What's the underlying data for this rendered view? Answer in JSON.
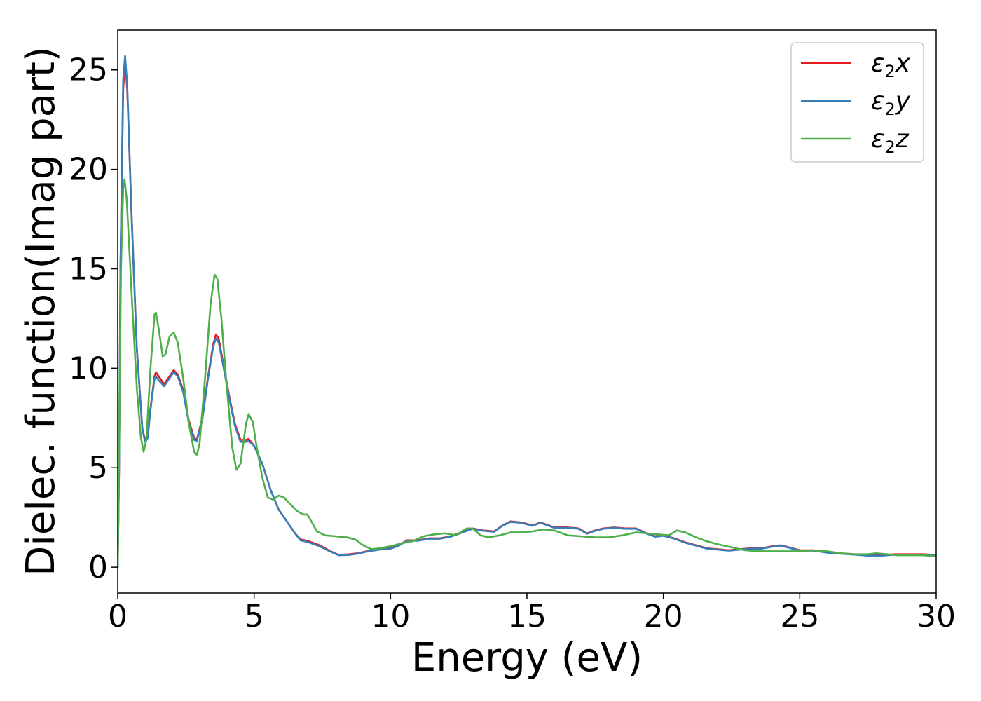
{
  "chart_data": {
    "type": "line",
    "title": "",
    "xlabel": "Energy (eV)",
    "ylabel": "Dielec. function(Imag part)",
    "xlim": [
      0,
      30
    ],
    "ylim": [
      -1.3,
      27
    ],
    "xticks": [
      "0",
      "5",
      "10",
      "15",
      "20",
      "25",
      "30"
    ],
    "xtick_values": [
      0,
      5,
      10,
      15,
      20,
      25,
      30
    ],
    "yticks": [
      "0",
      "5",
      "10",
      "15",
      "20",
      "25"
    ],
    "ytick_values": [
      0,
      5,
      10,
      15,
      20,
      25
    ],
    "grid": false,
    "legend_position": "top-right",
    "series": [
      {
        "name": "ε2x",
        "symbol": "ε",
        "sub": "2",
        "axis": "x",
        "color": "#e41a1c",
        "points": [
          [
            0,
            0
          ],
          [
            0.05,
            5
          ],
          [
            0.1,
            15
          ],
          [
            0.2,
            24
          ],
          [
            0.27,
            25.5
          ],
          [
            0.35,
            24
          ],
          [
            0.5,
            18
          ],
          [
            0.7,
            11
          ],
          [
            0.9,
            7
          ],
          [
            1.0,
            6.4
          ],
          [
            1.1,
            6.6
          ],
          [
            1.2,
            8
          ],
          [
            1.35,
            9.6
          ],
          [
            1.4,
            9.8
          ],
          [
            1.5,
            9.6
          ],
          [
            1.7,
            9.2
          ],
          [
            1.9,
            9.6
          ],
          [
            2.05,
            9.9
          ],
          [
            2.2,
            9.7
          ],
          [
            2.4,
            8.9
          ],
          [
            2.6,
            7.4
          ],
          [
            2.8,
            6.5
          ],
          [
            2.9,
            6.4
          ],
          [
            3.1,
            7.5
          ],
          [
            3.3,
            9.5
          ],
          [
            3.5,
            11.2
          ],
          [
            3.6,
            11.7
          ],
          [
            3.7,
            11.5
          ],
          [
            3.9,
            10
          ],
          [
            4.1,
            8.5
          ],
          [
            4.3,
            7.2
          ],
          [
            4.5,
            6.4
          ],
          [
            4.7,
            6.4
          ],
          [
            4.8,
            6.45
          ],
          [
            5.0,
            6.1
          ],
          [
            5.3,
            5.2
          ],
          [
            5.6,
            3.9
          ],
          [
            5.9,
            2.9
          ],
          [
            6.2,
            2.3
          ],
          [
            6.5,
            1.7
          ],
          [
            6.7,
            1.4
          ],
          [
            7.0,
            1.3
          ],
          [
            7.4,
            1.1
          ],
          [
            7.8,
            0.8
          ],
          [
            8.1,
            0.62
          ],
          [
            8.5,
            0.65
          ],
          [
            8.8,
            0.7
          ],
          [
            9.2,
            0.82
          ],
          [
            9.6,
            0.9
          ],
          [
            10.0,
            0.95
          ],
          [
            10.3,
            1.1
          ],
          [
            10.6,
            1.35
          ],
          [
            11.0,
            1.35
          ],
          [
            11.4,
            1.45
          ],
          [
            11.8,
            1.45
          ],
          [
            12.2,
            1.55
          ],
          [
            12.6,
            1.75
          ],
          [
            13.0,
            1.95
          ],
          [
            13.4,
            1.85
          ],
          [
            13.8,
            1.8
          ],
          [
            14.1,
            2.1
          ],
          [
            14.4,
            2.3
          ],
          [
            14.8,
            2.25
          ],
          [
            15.2,
            2.1
          ],
          [
            15.5,
            2.25
          ],
          [
            15.8,
            2.1
          ],
          [
            16.0,
            2.0
          ],
          [
            16.5,
            2.0
          ],
          [
            16.9,
            1.95
          ],
          [
            17.2,
            1.7
          ],
          [
            17.5,
            1.85
          ],
          [
            17.8,
            1.95
          ],
          [
            18.2,
            2.0
          ],
          [
            18.6,
            1.95
          ],
          [
            19.0,
            1.95
          ],
          [
            19.4,
            1.7
          ],
          [
            19.7,
            1.55
          ],
          [
            20.0,
            1.6
          ],
          [
            20.4,
            1.45
          ],
          [
            20.8,
            1.25
          ],
          [
            21.2,
            1.1
          ],
          [
            21.6,
            0.95
          ],
          [
            22.0,
            0.9
          ],
          [
            22.4,
            0.85
          ],
          [
            22.8,
            0.9
          ],
          [
            23.2,
            0.95
          ],
          [
            23.6,
            0.95
          ],
          [
            24.0,
            1.05
          ],
          [
            24.3,
            1.1
          ],
          [
            24.6,
            1.0
          ],
          [
            25.0,
            0.85
          ],
          [
            25.5,
            0.85
          ],
          [
            26.0,
            0.75
          ],
          [
            26.5,
            0.7
          ],
          [
            27.0,
            0.65
          ],
          [
            27.5,
            0.6
          ],
          [
            28.0,
            0.6
          ],
          [
            28.5,
            0.65
          ],
          [
            29.0,
            0.65
          ],
          [
            29.5,
            0.65
          ],
          [
            30.0,
            0.62
          ]
        ]
      },
      {
        "name": "ε2y",
        "symbol": "ε",
        "sub": "2",
        "axis": "y",
        "color": "#377eb8",
        "points": [
          [
            0,
            0
          ],
          [
            0.05,
            5
          ],
          [
            0.1,
            15
          ],
          [
            0.2,
            24.5
          ],
          [
            0.27,
            25.7
          ],
          [
            0.35,
            24.2
          ],
          [
            0.5,
            18
          ],
          [
            0.7,
            11
          ],
          [
            0.9,
            7
          ],
          [
            1.0,
            6.3
          ],
          [
            1.1,
            6.5
          ],
          [
            1.2,
            7.9
          ],
          [
            1.35,
            9.5
          ],
          [
            1.4,
            9.6
          ],
          [
            1.5,
            9.4
          ],
          [
            1.7,
            9.1
          ],
          [
            1.9,
            9.5
          ],
          [
            2.05,
            9.8
          ],
          [
            2.2,
            9.6
          ],
          [
            2.4,
            8.8
          ],
          [
            2.6,
            7.3
          ],
          [
            2.8,
            6.4
          ],
          [
            2.9,
            6.35
          ],
          [
            3.1,
            7.4
          ],
          [
            3.3,
            9.4
          ],
          [
            3.5,
            11.1
          ],
          [
            3.6,
            11.5
          ],
          [
            3.7,
            11.3
          ],
          [
            3.9,
            9.9
          ],
          [
            4.1,
            8.4
          ],
          [
            4.3,
            7.1
          ],
          [
            4.5,
            6.3
          ],
          [
            4.7,
            6.3
          ],
          [
            4.8,
            6.35
          ],
          [
            5.0,
            6.1
          ],
          [
            5.3,
            5.2
          ],
          [
            5.6,
            3.9
          ],
          [
            5.9,
            2.9
          ],
          [
            6.2,
            2.3
          ],
          [
            6.5,
            1.7
          ],
          [
            6.7,
            1.35
          ],
          [
            7.0,
            1.25
          ],
          [
            7.4,
            1.05
          ],
          [
            7.8,
            0.78
          ],
          [
            8.1,
            0.6
          ],
          [
            8.5,
            0.62
          ],
          [
            8.8,
            0.68
          ],
          [
            9.2,
            0.8
          ],
          [
            9.6,
            0.88
          ],
          [
            10.0,
            0.93
          ],
          [
            10.3,
            1.08
          ],
          [
            10.6,
            1.33
          ],
          [
            11.0,
            1.33
          ],
          [
            11.4,
            1.43
          ],
          [
            11.8,
            1.43
          ],
          [
            12.2,
            1.53
          ],
          [
            12.6,
            1.73
          ],
          [
            13.0,
            1.93
          ],
          [
            13.4,
            1.83
          ],
          [
            13.8,
            1.78
          ],
          [
            14.1,
            2.08
          ],
          [
            14.4,
            2.28
          ],
          [
            14.8,
            2.23
          ],
          [
            15.2,
            2.08
          ],
          [
            15.5,
            2.23
          ],
          [
            15.8,
            2.08
          ],
          [
            16.0,
            1.98
          ],
          [
            16.5,
            1.98
          ],
          [
            16.9,
            1.93
          ],
          [
            17.2,
            1.68
          ],
          [
            17.5,
            1.83
          ],
          [
            17.8,
            1.93
          ],
          [
            18.2,
            1.98
          ],
          [
            18.6,
            1.93
          ],
          [
            19.0,
            1.93
          ],
          [
            19.4,
            1.68
          ],
          [
            19.7,
            1.53
          ],
          [
            20.0,
            1.58
          ],
          [
            20.4,
            1.43
          ],
          [
            20.8,
            1.23
          ],
          [
            21.2,
            1.08
          ],
          [
            21.6,
            0.93
          ],
          [
            22.0,
            0.88
          ],
          [
            22.4,
            0.83
          ],
          [
            22.8,
            0.88
          ],
          [
            23.2,
            0.93
          ],
          [
            23.6,
            0.93
          ],
          [
            24.0,
            1.03
          ],
          [
            24.3,
            1.08
          ],
          [
            24.6,
            0.98
          ],
          [
            25.0,
            0.83
          ],
          [
            25.5,
            0.83
          ],
          [
            26.0,
            0.73
          ],
          [
            26.5,
            0.68
          ],
          [
            27.0,
            0.63
          ],
          [
            27.5,
            0.58
          ],
          [
            28.0,
            0.58
          ],
          [
            28.5,
            0.63
          ],
          [
            29.0,
            0.63
          ],
          [
            29.5,
            0.63
          ],
          [
            30.0,
            0.6
          ]
        ]
      },
      {
        "name": "ε2z",
        "symbol": "ε",
        "sub": "2",
        "axis": "z",
        "color": "#4daf4a",
        "points": [
          [
            0,
            0
          ],
          [
            0.05,
            6
          ],
          [
            0.12,
            15
          ],
          [
            0.2,
            19
          ],
          [
            0.25,
            19.5
          ],
          [
            0.33,
            18.5
          ],
          [
            0.5,
            14
          ],
          [
            0.7,
            9
          ],
          [
            0.85,
            6.5
          ],
          [
            0.95,
            5.8
          ],
          [
            1.05,
            6.4
          ],
          [
            1.2,
            10
          ],
          [
            1.35,
            12.7
          ],
          [
            1.4,
            12.8
          ],
          [
            1.5,
            12
          ],
          [
            1.65,
            10.6
          ],
          [
            1.75,
            10.7
          ],
          [
            1.9,
            11.6
          ],
          [
            2.05,
            11.8
          ],
          [
            2.2,
            11.3
          ],
          [
            2.4,
            9.5
          ],
          [
            2.6,
            7.3
          ],
          [
            2.8,
            5.8
          ],
          [
            2.9,
            5.65
          ],
          [
            3.0,
            6.2
          ],
          [
            3.2,
            9.5
          ],
          [
            3.4,
            13.2
          ],
          [
            3.55,
            14.7
          ],
          [
            3.65,
            14.5
          ],
          [
            3.8,
            12.5
          ],
          [
            4.0,
            9
          ],
          [
            4.2,
            6
          ],
          [
            4.35,
            4.9
          ],
          [
            4.5,
            5.2
          ],
          [
            4.7,
            7.2
          ],
          [
            4.8,
            7.7
          ],
          [
            4.95,
            7.3
          ],
          [
            5.1,
            6
          ],
          [
            5.3,
            4.5
          ],
          [
            5.5,
            3.5
          ],
          [
            5.7,
            3.4
          ],
          [
            5.9,
            3.6
          ],
          [
            6.1,
            3.5
          ],
          [
            6.3,
            3.2
          ],
          [
            6.6,
            2.8
          ],
          [
            6.8,
            2.65
          ],
          [
            6.95,
            2.65
          ],
          [
            7.1,
            2.3
          ],
          [
            7.3,
            1.8
          ],
          [
            7.6,
            1.6
          ],
          [
            8.0,
            1.55
          ],
          [
            8.4,
            1.5
          ],
          [
            8.7,
            1.4
          ],
          [
            9.0,
            1.1
          ],
          [
            9.3,
            0.9
          ],
          [
            9.6,
            0.95
          ],
          [
            10.0,
            1.05
          ],
          [
            10.4,
            1.2
          ],
          [
            10.8,
            1.3
          ],
          [
            11.2,
            1.55
          ],
          [
            11.6,
            1.65
          ],
          [
            12.0,
            1.7
          ],
          [
            12.4,
            1.6
          ],
          [
            12.8,
            1.95
          ],
          [
            13.0,
            1.95
          ],
          [
            13.3,
            1.6
          ],
          [
            13.6,
            1.5
          ],
          [
            14.0,
            1.6
          ],
          [
            14.4,
            1.75
          ],
          [
            14.8,
            1.75
          ],
          [
            15.2,
            1.8
          ],
          [
            15.6,
            1.9
          ],
          [
            16.0,
            1.85
          ],
          [
            16.5,
            1.6
          ],
          [
            17.0,
            1.55
          ],
          [
            17.5,
            1.5
          ],
          [
            18.0,
            1.5
          ],
          [
            18.5,
            1.6
          ],
          [
            19.0,
            1.75
          ],
          [
            19.4,
            1.7
          ],
          [
            19.8,
            1.65
          ],
          [
            20.2,
            1.6
          ],
          [
            20.5,
            1.85
          ],
          [
            20.8,
            1.75
          ],
          [
            21.2,
            1.5
          ],
          [
            21.6,
            1.3
          ],
          [
            22.0,
            1.15
          ],
          [
            22.5,
            1.0
          ],
          [
            23.0,
            0.85
          ],
          [
            23.5,
            0.8
          ],
          [
            24.0,
            0.8
          ],
          [
            24.5,
            0.8
          ],
          [
            25.0,
            0.8
          ],
          [
            25.5,
            0.85
          ],
          [
            26.0,
            0.8
          ],
          [
            26.5,
            0.7
          ],
          [
            27.0,
            0.65
          ],
          [
            27.5,
            0.65
          ],
          [
            27.8,
            0.7
          ],
          [
            28.2,
            0.65
          ],
          [
            28.6,
            0.6
          ],
          [
            29.0,
            0.6
          ],
          [
            29.5,
            0.6
          ],
          [
            30.0,
            0.55
          ]
        ]
      }
    ]
  }
}
